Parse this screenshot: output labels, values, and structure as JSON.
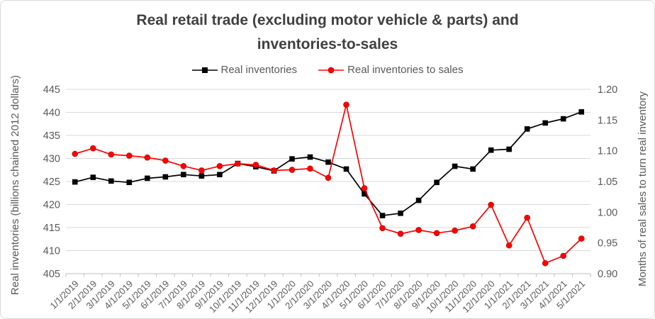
{
  "chart_data": {
    "type": "line",
    "title": "Real retail trade (excluding motor vehicle & parts) and inventories-to-sales",
    "title_lines": [
      "Real retail trade (excluding motor vehicle & parts) and",
      "inventories-to-sales"
    ],
    "legend_position": "top",
    "grid": true,
    "categories": [
      "1/1/2019",
      "2/1/2019",
      "3/1/2019",
      "4/1/2019",
      "5/1/2019",
      "6/1/2019",
      "7/1/2019",
      "8/1/2019",
      "9/1/2019",
      "10/1/2019",
      "11/1/2019",
      "12/1/2019",
      "1/1/2020",
      "2/1/2020",
      "3/1/2020",
      "4/1/2020",
      "5/1/2020",
      "6/1/2020",
      "7/1/2020",
      "8/1/2020",
      "9/1/2020",
      "10/1/2020",
      "11/1/2020",
      "12/1/2020",
      "1/1/2021",
      "2/1/2021",
      "3/1/2021",
      "4/1/2021",
      "5/1/2021"
    ],
    "series": [
      {
        "name": "Real inventories",
        "axis": "left",
        "marker": "square",
        "color": "#000000",
        "values": [
          424.9,
          425.9,
          425.1,
          424.8,
          425.7,
          426.0,
          426.5,
          426.2,
          426.5,
          428.9,
          428.2,
          427.3,
          429.9,
          430.3,
          429.2,
          427.7,
          422.3,
          417.6,
          418.1,
          420.9,
          424.8,
          428.3,
          427.7,
          431.8,
          432.0,
          436.4,
          437.7,
          438.6,
          440.1
        ]
      },
      {
        "name": "Real inventories to sales",
        "axis": "right",
        "marker": "circle",
        "color": "#FF0000",
        "values": [
          1.095,
          1.104,
          1.094,
          1.092,
          1.089,
          1.084,
          1.075,
          1.068,
          1.075,
          1.079,
          1.077,
          1.068,
          1.069,
          1.071,
          1.056,
          1.175,
          1.039,
          0.974,
          0.965,
          0.971,
          0.966,
          0.97,
          0.977,
          1.012,
          0.946,
          0.991,
          0.917,
          0.929,
          0.957
        ]
      }
    ],
    "left_axis": {
      "label": "Real inventories (billions chained 2012 dollars)",
      "min": 405,
      "max": 445,
      "step": 5,
      "tick_labels": [
        "445",
        "440",
        "435",
        "430",
        "425",
        "420",
        "415",
        "410",
        "405"
      ]
    },
    "right_axis": {
      "label": "Months of real sales to turn real inventory",
      "min": 0.9,
      "max": 1.2,
      "step": 0.05,
      "tick_labels": [
        "1.20",
        "1.15",
        "1.10",
        "1.05",
        "1.00",
        "0.95",
        "0.90"
      ]
    },
    "colors": {
      "title_text": "#404040",
      "axis_text": "#595959",
      "gridline": "#D9D9D9",
      "axis_line": "#BFBFBF",
      "inventories_series": "#000000",
      "ratio_series": "#FF0000",
      "ratio_marker_edge": "#CC0000"
    }
  }
}
